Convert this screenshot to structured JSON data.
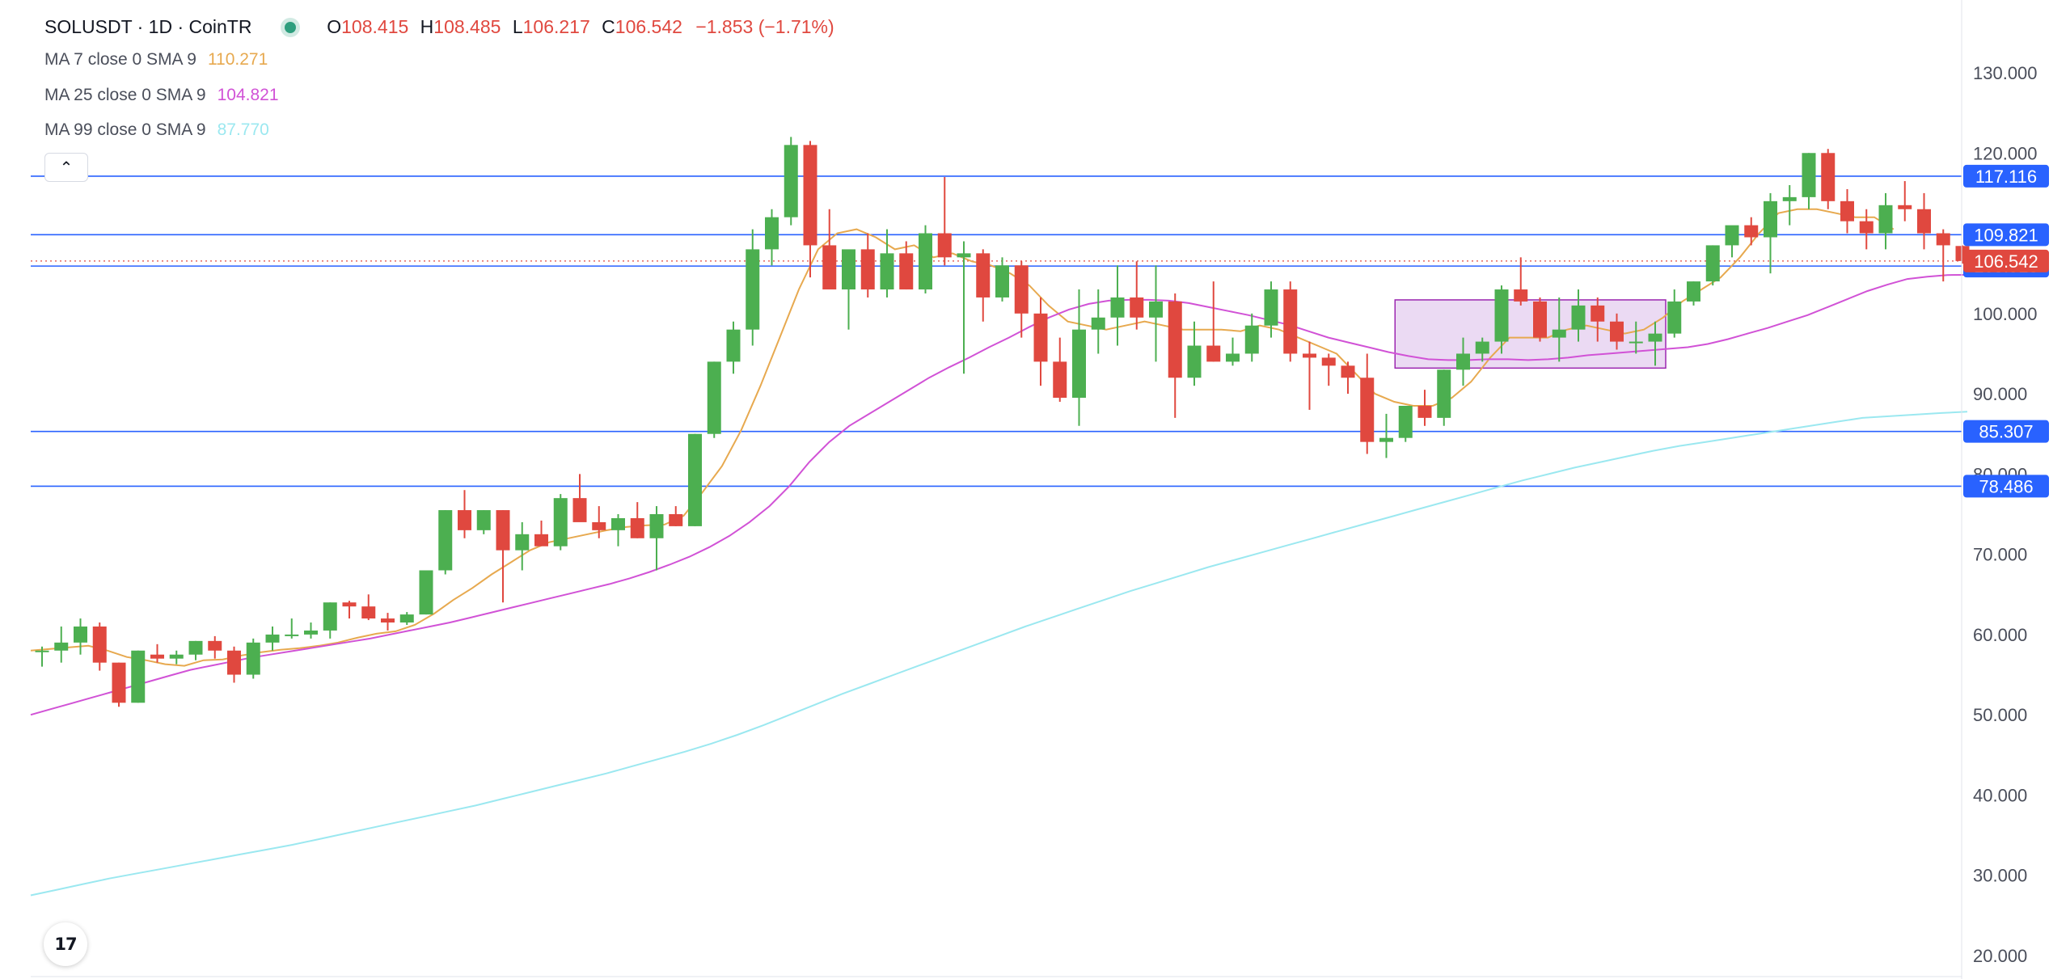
{
  "header": {
    "symbol": "SOLUSDT · 1D · CoinTR",
    "open_key": "O",
    "open": "108.415",
    "high_key": "H",
    "high": "108.485",
    "low_key": "L",
    "low": "106.217",
    "close_key": "C",
    "close": "106.542",
    "change": "−1.853 (−1.71%)"
  },
  "indicators": [
    {
      "label": "MA 7 close 0 SMA 9",
      "value": "110.271",
      "color": "#e7a94f"
    },
    {
      "label": "MA 25 close 0 SMA 9",
      "value": "104.821",
      "color": "#d152d6"
    },
    {
      "label": "MA 99 close 0 SMA 9",
      "value": "87.770",
      "color": "#9be8f0"
    }
  ],
  "collapse_icon": "chevron-up-icon",
  "logo_text": "17",
  "colors": {
    "up": "#4caf50",
    "down": "#e0483f",
    "level": "#2962ff",
    "box_fill": "#e7d3f1",
    "box_stroke": "#9c27b0"
  },
  "chart_data": {
    "type": "candlestick",
    "title": "SOLUSDT · 1D · CoinTR",
    "ylim": [
      20,
      130
    ],
    "yticks": [
      "130.000",
      "120.000",
      "110.000",
      "100.000",
      "90.000",
      "80.000",
      "70.000",
      "60.000",
      "50.000",
      "40.000",
      "30.000",
      "20.000"
    ],
    "ytick_values": [
      130,
      120,
      110,
      100,
      90,
      80,
      70,
      60,
      50,
      40,
      30,
      20
    ],
    "current_price": {
      "label": "106.542",
      "value": 106.542
    },
    "levels": [
      {
        "label": "117.116",
        "value": 117.116
      },
      {
        "label": "109.821",
        "value": 109.821
      },
      {
        "label": "105.913",
        "value": 105.913
      },
      {
        "label": "85.307",
        "value": 85.307
      },
      {
        "label": "78.486",
        "value": 78.486
      }
    ],
    "range_box": {
      "start_index": 71,
      "end_index": 84,
      "top": 101.7,
      "bottom": 93.2
    },
    "candles": [
      [
        58,
        58.5,
        56,
        58
      ],
      [
        58,
        61,
        56.5,
        59
      ],
      [
        59,
        62,
        57.5,
        61
      ],
      [
        61,
        61.5,
        55.5,
        56.5
      ],
      [
        56.5,
        56.5,
        51,
        51.5
      ],
      [
        51.5,
        58,
        51.5,
        58
      ],
      [
        57.5,
        58.8,
        56.5,
        57
      ],
      [
        57,
        58,
        56.3,
        57.5
      ],
      [
        57.5,
        59.2,
        56.8,
        59.2
      ],
      [
        59.2,
        59.8,
        57,
        58
      ],
      [
        58,
        58.5,
        54,
        55
      ],
      [
        55,
        59.5,
        54.5,
        59
      ],
      [
        59,
        61,
        58,
        60
      ],
      [
        60,
        62,
        59.5,
        60
      ],
      [
        60,
        61.5,
        59.5,
        60.5
      ],
      [
        60.5,
        64,
        59.5,
        64
      ],
      [
        64,
        64.2,
        62,
        63.5
      ],
      [
        63.5,
        65,
        61.8,
        62
      ],
      [
        62,
        62.7,
        60.5,
        61.5
      ],
      [
        61.5,
        62.8,
        61.2,
        62.5
      ],
      [
        62.5,
        68,
        62.5,
        68
      ],
      [
        68,
        75.5,
        67.5,
        75.5
      ],
      [
        75.5,
        78,
        72,
        73
      ],
      [
        73,
        75.5,
        72.5,
        75.5
      ],
      [
        75.5,
        75.5,
        64,
        70.5
      ],
      [
        70.5,
        74,
        68,
        72.5
      ],
      [
        72.5,
        74.2,
        71.5,
        71
      ],
      [
        71,
        77.5,
        70.5,
        77
      ],
      [
        77,
        80,
        75,
        74
      ],
      [
        74,
        76,
        72,
        73
      ],
      [
        73,
        75,
        71,
        74.5
      ],
      [
        74.5,
        76.5,
        72,
        72
      ],
      [
        72,
        76,
        68,
        75
      ],
      [
        75,
        76,
        73.5,
        73.5
      ],
      [
        73.5,
        85,
        73.5,
        85
      ],
      [
        85,
        94,
        84.5,
        94
      ],
      [
        94,
        99,
        92.5,
        98
      ],
      [
        98,
        110.5,
        96,
        108
      ],
      [
        108,
        113,
        106,
        112
      ],
      [
        112,
        122,
        111,
        121
      ],
      [
        121,
        121.5,
        104.5,
        108.5
      ],
      [
        108.5,
        113,
        103,
        103
      ],
      [
        103,
        107,
        98,
        108
      ],
      [
        108,
        110,
        102,
        103
      ],
      [
        103,
        110.5,
        102,
        107.5
      ],
      [
        107.5,
        109,
        103,
        103
      ],
      [
        103,
        111,
        102.5,
        110
      ],
      [
        110,
        117,
        106,
        107
      ],
      [
        107,
        109,
        92.5,
        107.5
      ],
      [
        107.5,
        108,
        99,
        102
      ],
      [
        102,
        107,
        101.5,
        106
      ],
      [
        106,
        106.5,
        97,
        100
      ],
      [
        100,
        102,
        91,
        94
      ],
      [
        94,
        97,
        89,
        89.5
      ],
      [
        89.5,
        103,
        86,
        98
      ],
      [
        98,
        103,
        95,
        99.5
      ],
      [
        99.5,
        106,
        96,
        102
      ],
      [
        102,
        106.5,
        98,
        99.5
      ],
      [
        99.5,
        106,
        94,
        101.5
      ],
      [
        101.5,
        102.5,
        87,
        92
      ],
      [
        92,
        99,
        91,
        96
      ],
      [
        96,
        104,
        94,
        94
      ],
      [
        94,
        97,
        93.5,
        95
      ],
      [
        95,
        100,
        94,
        98.5
      ],
      [
        98.5,
        104,
        97,
        103
      ],
      [
        103,
        104,
        94,
        95
      ],
      [
        95,
        96.5,
        88,
        94.5
      ],
      [
        94.5,
        95,
        91,
        93.5
      ],
      [
        93.5,
        94,
        90,
        92
      ],
      [
        92,
        95,
        82.5,
        84
      ],
      [
        84,
        87.5,
        82,
        84.5
      ],
      [
        84.5,
        88.5,
        84,
        88.5
      ],
      [
        88.5,
        90.5,
        86,
        87
      ],
      [
        87,
        93,
        86,
        93
      ],
      [
        93,
        97,
        91,
        95
      ],
      [
        95,
        97,
        94,
        96.5
      ],
      [
        96.5,
        103.5,
        95,
        103
      ],
      [
        103,
        107,
        101,
        101.5
      ],
      [
        101.5,
        102,
        96.5,
        97
      ],
      [
        97,
        102,
        94,
        98
      ],
      [
        98,
        103,
        96.5,
        101
      ],
      [
        101,
        102,
        96.5,
        99
      ],
      [
        99,
        100,
        95.5,
        96.5
      ],
      [
        96.5,
        99,
        95,
        96.5
      ],
      [
        96.5,
        99,
        93.5,
        97.5
      ],
      [
        97.5,
        103,
        97,
        101.5
      ],
      [
        101.5,
        104,
        101,
        104
      ],
      [
        104,
        108.5,
        103.5,
        108.5
      ],
      [
        108.5,
        110.5,
        107,
        111
      ],
      [
        111,
        112,
        108.5,
        109.5
      ],
      [
        109.5,
        115,
        105,
        114
      ],
      [
        114,
        116,
        111,
        114.5
      ],
      [
        114.5,
        120,
        113,
        120
      ],
      [
        120,
        120.5,
        113,
        114
      ],
      [
        114,
        115.5,
        110,
        111.5
      ],
      [
        111.5,
        113,
        108,
        110
      ],
      [
        110,
        115,
        108,
        113.5
      ],
      [
        113.5,
        116.5,
        111.5,
        113
      ],
      [
        113,
        115,
        108,
        110
      ],
      [
        110,
        110.5,
        104,
        108.5
      ],
      [
        108.415,
        108.485,
        106.217,
        106.542
      ]
    ],
    "ma7": [
      58,
      58.2,
      58.4,
      58.6,
      58,
      57.2,
      56.8,
      56.3,
      56.1,
      56.8,
      56.9,
      57.4,
      57.8,
      58.1,
      58.3,
      58.6,
      59,
      59.6,
      60.1,
      60.4,
      61.2,
      62.6,
      64.3,
      65.8,
      67.5,
      69,
      70.5,
      71.5,
      72,
      72.5,
      73,
      73.4,
      73.6,
      73.7,
      74.8,
      77.8,
      81,
      85.5,
      91,
      97,
      103,
      108,
      110,
      110.5,
      109.5,
      108,
      108.5,
      107,
      107.5,
      106.5,
      106,
      105,
      103.5,
      101,
      99,
      98.5,
      98,
      98.5,
      99,
      98.5,
      98,
      98,
      98,
      97.8,
      98.5,
      98,
      97,
      96,
      95,
      92.5,
      90,
      89,
      88.5,
      88.5,
      89.5,
      91.5,
      94.5,
      97,
      97,
      97,
      98,
      98.5,
      98,
      97.5,
      98,
      99.5,
      101.5,
      103,
      104.5,
      107,
      110,
      112.5,
      113,
      113,
      112.5,
      112,
      112,
      110.5
    ],
    "ma25": [
      50,
      50.7,
      51.4,
      52.1,
      52.8,
      53.5,
      54.2,
      54.9,
      55.6,
      56.1,
      56.6,
      57.1,
      57.5,
      57.9,
      58.3,
      58.7,
      59.1,
      59.5,
      60,
      60.5,
      61,
      61.5,
      62.1,
      62.7,
      63.3,
      63.9,
      64.5,
      65.1,
      65.7,
      66.3,
      67,
      67.8,
      68.7,
      69.7,
      70.9,
      72.3,
      74,
      76,
      78.5,
      81.5,
      84,
      86,
      87.5,
      89,
      90.5,
      92,
      93.3,
      94.5,
      95.8,
      97,
      98.3,
      99.5,
      100.5,
      101.2,
      101.6,
      101.7,
      101.7,
      101.6,
      101.3,
      100.8,
      100.3,
      99.8,
      99.2,
      98.6,
      97.8,
      97,
      96.4,
      95.8,
      95.2,
      94.7,
      94.3,
      94.2,
      94.2,
      94.3,
      94.3,
      94.2,
      94.3,
      94.5,
      94.8,
      95,
      95.2,
      95.4,
      95.6,
      95.8,
      96.2,
      96.8,
      97.5,
      98.2,
      99,
      99.8,
      100.8,
      101.8,
      102.8,
      103.6,
      104.3,
      104.6,
      104.8,
      104.821
    ],
    "ma99": [
      27.5,
      28.2,
      28.9,
      29.6,
      30.2,
      30.8,
      31.4,
      32,
      32.6,
      33.2,
      33.8,
      34.5,
      35.2,
      35.9,
      36.6,
      37.3,
      38,
      38.7,
      39.5,
      40.3,
      41.1,
      41.9,
      42.7,
      43.6,
      44.5,
      45.4,
      46.4,
      47.5,
      48.7,
      50,
      51.3,
      52.6,
      53.8,
      55,
      56.2,
      57.4,
      58.6,
      59.8,
      61,
      62.1,
      63.2,
      64.3,
      65.4,
      66.4,
      67.4,
      68.4,
      69.3,
      70.2,
      71.1,
      72,
      72.9,
      73.8,
      74.7,
      75.6,
      76.5,
      77.4,
      78.3,
      79.2,
      80,
      80.8,
      81.5,
      82.2,
      82.9,
      83.5,
      84,
      84.5,
      85,
      85.5,
      86,
      86.5,
      87,
      87.2,
      87.4,
      87.6,
      87.77
    ]
  }
}
